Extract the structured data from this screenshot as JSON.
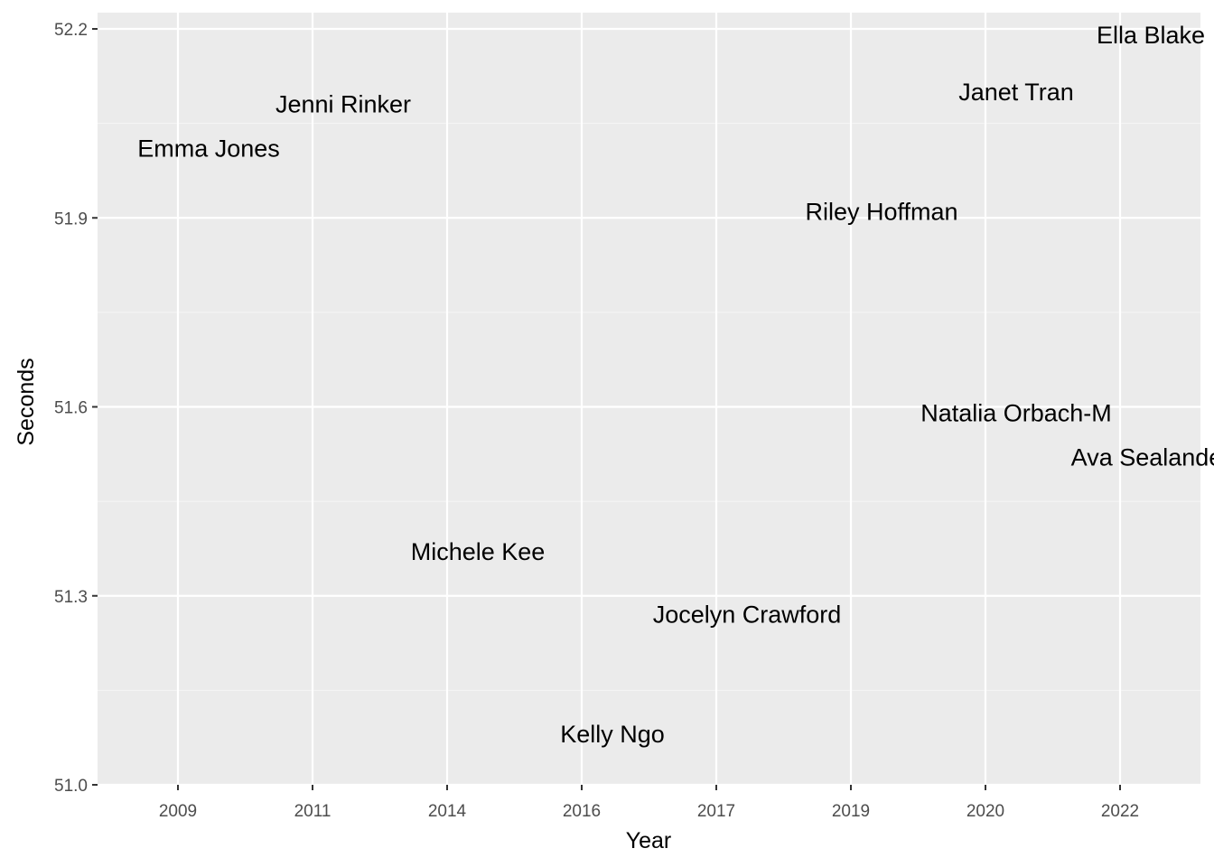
{
  "chart_data": {
    "type": "scatter",
    "title": "",
    "xlabel": "Year",
    "ylabel": "Seconds",
    "x_categories": [
      "2009",
      "2011",
      "2014",
      "2016",
      "2017",
      "2019",
      "2020",
      "2022"
    ],
    "y_ticks": [
      "51.0",
      "51.3",
      "51.6",
      "51.9",
      "52.2"
    ],
    "ylim": [
      51.0,
      52.2
    ],
    "grid": true,
    "legend": "none",
    "points": [
      {
        "label": "Emma Jones",
        "x": "2009",
        "y": 52.01
      },
      {
        "label": "Jenni Rinker",
        "x": "2011",
        "y": 52.08
      },
      {
        "label": "Michele Kee",
        "x": "2014",
        "y": 51.37
      },
      {
        "label": "Kelly Ngo",
        "x": "2016",
        "y": 51.08
      },
      {
        "label": "Jocelyn Crawford",
        "x": "2017",
        "y": 51.27
      },
      {
        "label": "Riley Hoffman",
        "x": "2019",
        "y": 51.91
      },
      {
        "label": "Natalia Orbach-M",
        "x": "2020",
        "y": 51.59
      },
      {
        "label": "Janet Tran",
        "x": "2020",
        "y": 52.1
      },
      {
        "label": "Ava Sealander",
        "x": "2022",
        "y": 51.52
      },
      {
        "label": "Ella Blake",
        "x": "2022",
        "y": 52.19
      }
    ]
  },
  "colors": {
    "panel_background": "#ebebeb",
    "grid_major": "#ffffff",
    "grid_minor": "#f5f5f5",
    "tick_text": "#4d4d4d",
    "label_text": "#000000"
  }
}
